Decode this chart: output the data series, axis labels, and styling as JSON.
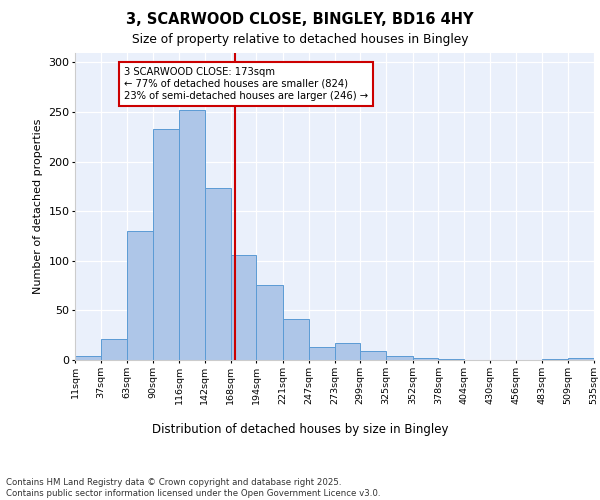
{
  "title": "3, SCARWOOD CLOSE, BINGLEY, BD16 4HY",
  "subtitle": "Size of property relative to detached houses in Bingley",
  "xlabel": "Distribution of detached houses by size in Bingley",
  "ylabel": "Number of detached properties",
  "bin_edges": [
    11,
    37,
    63,
    90,
    116,
    142,
    168,
    194,
    221,
    247,
    273,
    299,
    325,
    352,
    378,
    404,
    430,
    456,
    483,
    509,
    535
  ],
  "bar_heights": [
    4,
    21,
    130,
    233,
    252,
    173,
    106,
    76,
    41,
    13,
    17,
    9,
    4,
    2,
    1,
    0,
    0,
    0,
    1,
    2
  ],
  "bar_color": "#aec6e8",
  "bar_edge_color": "#5b9bd5",
  "property_size": 173,
  "red_line_color": "#cc0000",
  "annotation_text": "3 SCARWOOD CLOSE: 173sqm\n← 77% of detached houses are smaller (824)\n23% of semi-detached houses are larger (246) →",
  "annotation_box_color": "#ffffff",
  "annotation_box_edge": "#cc0000",
  "ylim": [
    0,
    310
  ],
  "yticks": [
    0,
    50,
    100,
    150,
    200,
    250,
    300
  ],
  "tick_labels": [
    "11sqm",
    "37sqm",
    "63sqm",
    "90sqm",
    "116sqm",
    "142sqm",
    "168sqm",
    "194sqm",
    "221sqm",
    "247sqm",
    "273sqm",
    "299sqm",
    "325sqm",
    "352sqm",
    "378sqm",
    "404sqm",
    "430sqm",
    "456sqm",
    "483sqm",
    "509sqm",
    "535sqm"
  ],
  "footer": "Contains HM Land Registry data © Crown copyright and database right 2025.\nContains public sector information licensed under the Open Government Licence v3.0.",
  "bg_color": "#eaf0fb",
  "fig_bg_color": "#ffffff"
}
